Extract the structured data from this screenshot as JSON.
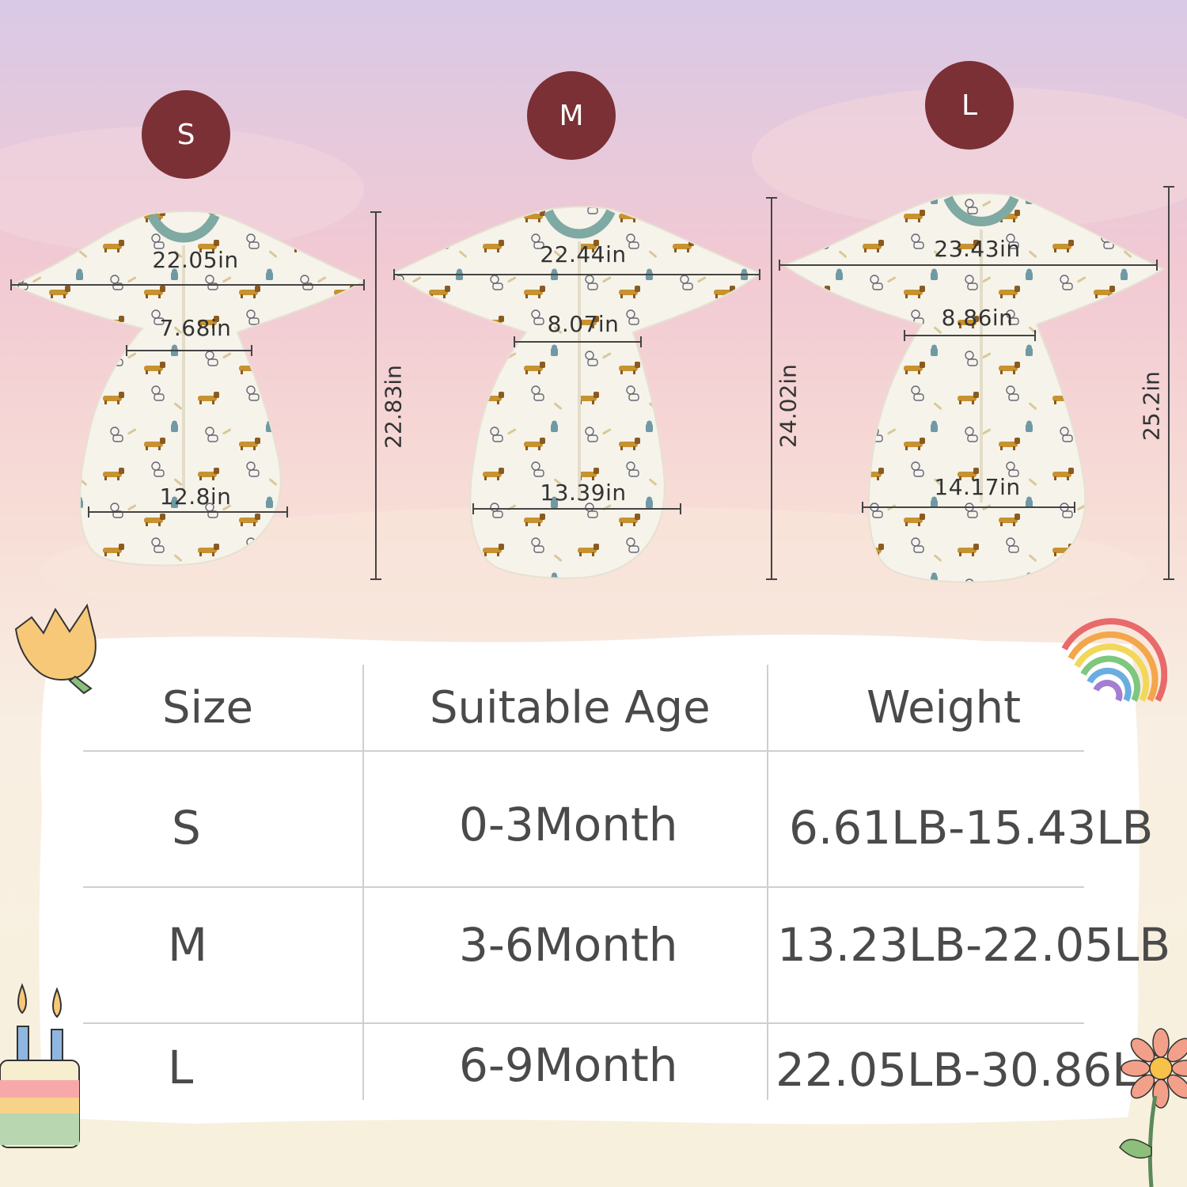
{
  "sizes": [
    {
      "label": "S",
      "chest": "22.05in",
      "armhole": "7.68in",
      "hem": "12.8in",
      "length": "22.83in"
    },
    {
      "label": "M",
      "chest": "22.44in",
      "armhole": "8.07in",
      "hem": "13.39in",
      "length": "24.02in"
    },
    {
      "label": "L",
      "chest": "23.43in",
      "armhole": "8.86in",
      "hem": "14.17in",
      "length": "25.2in"
    }
  ],
  "table": {
    "headers": [
      "Size",
      "Suitable Age",
      "Weight"
    ],
    "rows": [
      {
        "size": "S",
        "age": "0-3Month",
        "weight": "6.61LB-15.43LB"
      },
      {
        "size": "M",
        "age": "3-6Month",
        "weight": "13.23LB-22.05LB"
      },
      {
        "size": "L",
        "age": "6-9Month",
        "weight": "22.05LB-30.86LB"
      }
    ]
  },
  "colors": {
    "badge": "#7b3035",
    "fabric": "#f6f3ea",
    "collar": "#7fa9a3",
    "text": "#4a4a4a"
  },
  "icons": [
    "tulip-icon",
    "rainbow-icon",
    "birthday-cake-icon",
    "daisy-flower-icon"
  ]
}
